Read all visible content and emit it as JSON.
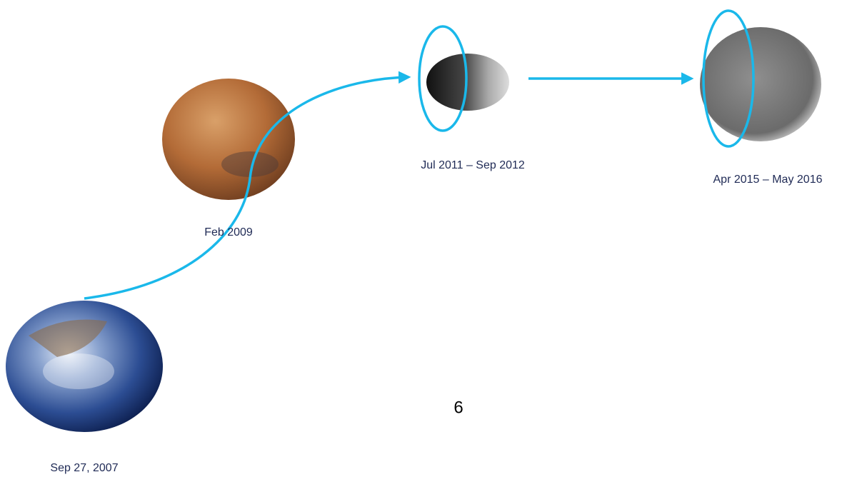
{
  "nodes": [
    {
      "label": "Sep 27, 2007"
    },
    {
      "label": "Feb 2009"
    },
    {
      "label": "Jul 2011 – Sep 2012"
    },
    {
      "label": "Apr 2015 – May 2016"
    }
  ],
  "page_number": "6"
}
